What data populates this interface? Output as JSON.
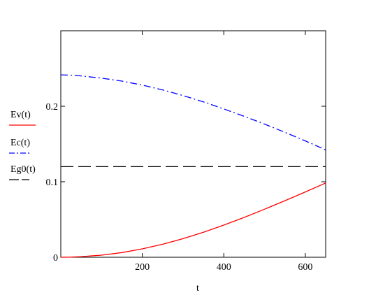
{
  "chart_data": {
    "type": "line",
    "xlabel": "t",
    "xlim": [
      0,
      650
    ],
    "ylim": [
      0,
      0.3
    ],
    "x_ticks": [
      {
        "value": 200,
        "label": "200"
      },
      {
        "value": 400,
        "label": "400"
      },
      {
        "value": 600,
        "label": "600"
      }
    ],
    "y_ticks": [
      {
        "value": 0,
        "label": "0"
      },
      {
        "value": 0.1,
        "label": "0.1"
      },
      {
        "value": 0.2,
        "label": "0.2"
      }
    ],
    "grid": false,
    "legend_position": "left",
    "series": [
      {
        "name": "Ev(t)",
        "color": "#ff0000",
        "style": "solid",
        "x": [
          0,
          25,
          50,
          100,
          150,
          200,
          250,
          300,
          350,
          400,
          450,
          500,
          550,
          600,
          650
        ],
        "y": [
          0,
          0.0002,
          0.0008,
          0.0028,
          0.0062,
          0.0111,
          0.0172,
          0.0246,
          0.0331,
          0.0426,
          0.0528,
          0.0636,
          0.0749,
          0.0865,
          0.0983
        ]
      },
      {
        "name": "Ec(t)",
        "color": "#0000ff",
        "style": "dashdot",
        "x": [
          0,
          25,
          50,
          100,
          150,
          200,
          250,
          300,
          350,
          400,
          450,
          500,
          550,
          600,
          650
        ],
        "y": [
          0.2416,
          0.2412,
          0.2402,
          0.2372,
          0.2333,
          0.2281,
          0.2217,
          0.2142,
          0.2058,
          0.1965,
          0.1867,
          0.1764,
          0.1655,
          0.1542,
          0.1422
        ]
      },
      {
        "name": "Eg0(t)",
        "color": "#000000",
        "style": "dashed",
        "x": [
          0,
          650
        ],
        "y": [
          0.12,
          0.12
        ]
      }
    ]
  }
}
